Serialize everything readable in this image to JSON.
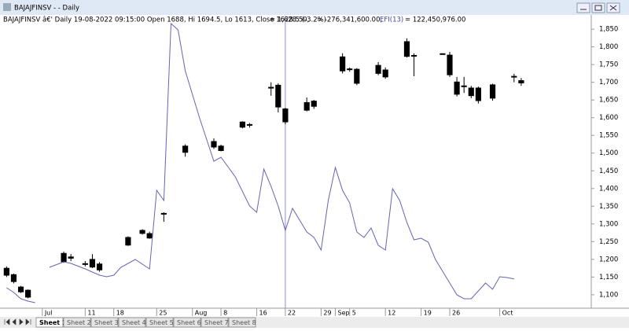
{
  "window": {
    "title": "BAJAJFINSV - - Daily"
  },
  "header": {
    "info": "BAJAJFINSV â€' Daily 19-08-2022 09:15:00 Open 1688, Hi 1694.5, Lo 1613, Close 1628.5 (-3.2%)",
    "close_value": "= 1,628.50,",
    "volume_value": "= -276,341,600.00,",
    "efi_value": "= 122,450,976.00"
  },
  "chart_data": {
    "type": "candlestick",
    "xlim": [
      -0.7,
      81.8
    ],
    "ylim": [
      1062,
      1888
    ],
    "yticks": [
      {
        "value": 1100,
        "label": "1,100"
      },
      {
        "value": 1150,
        "label": "1,150"
      },
      {
        "value": 1200,
        "label": "1,200"
      },
      {
        "value": 1250,
        "label": "1,250"
      },
      {
        "value": 1300,
        "label": "1,300"
      },
      {
        "value": 1350,
        "label": "1,350"
      },
      {
        "value": 1400,
        "label": "1,400"
      },
      {
        "value": 1450,
        "label": "1,450"
      },
      {
        "value": 1500,
        "label": "1,500"
      },
      {
        "value": 1550,
        "label": "1,550"
      },
      {
        "value": 1600,
        "label": "1,600"
      },
      {
        "value": 1650,
        "label": "1,650"
      },
      {
        "value": 1700,
        "label": "1,700"
      },
      {
        "value": 1750,
        "label": "1,750"
      },
      {
        "value": 1800,
        "label": "1,800"
      },
      {
        "value": 1850,
        "label": "1,850"
      }
    ],
    "xticks": [
      {
        "value": 5,
        "label": "Jul"
      },
      {
        "value": 11,
        "label": "11"
      },
      {
        "value": 15,
        "label": "18"
      },
      {
        "value": 21,
        "label": "25"
      },
      {
        "value": 26,
        "label": "Aug"
      },
      {
        "value": 30,
        "label": "8"
      },
      {
        "value": 35,
        "label": "16"
      },
      {
        "value": 39,
        "label": "22"
      },
      {
        "value": 44,
        "label": "29"
      },
      {
        "value": 46,
        "label": "Sep"
      },
      {
        "value": 48,
        "label": "5"
      },
      {
        "value": 53,
        "label": "12"
      },
      {
        "value": 58,
        "label": "19"
      },
      {
        "value": 62,
        "label": "26"
      },
      {
        "value": 69,
        "label": "Oct"
      }
    ],
    "y2lim": [
      -250,
      3470
    ],
    "cursor_x": 39,
    "grid": false,
    "candles": {
      "color": "#000000",
      "x": [
        0,
        1,
        2,
        3,
        8,
        9,
        11,
        12,
        13,
        17,
        19,
        20,
        22,
        25,
        29,
        30,
        33,
        34,
        37,
        38,
        39,
        42,
        43,
        47,
        48,
        49,
        52,
        53,
        56,
        57,
        61,
        62,
        63,
        64,
        65,
        66,
        68,
        71,
        72
      ],
      "open": [
        1175,
        1157,
        1122,
        1113,
        1217,
        1207,
        1188,
        1200,
        1187,
        1262,
        1282,
        1273,
        1330,
        1520,
        1533,
        1520,
        1588,
        1581,
        1686,
        1692,
        1625,
        1643,
        1647,
        1772,
        1738,
        1737,
        1748,
        1735,
        1815,
        1776,
        1781,
        1777,
        1701,
        1690,
        1684,
        1684,
        1693,
        1717,
        1705
      ],
      "high": [
        1180,
        1160,
        1125,
        1115,
        1222,
        1215,
        1195,
        1215,
        1192,
        1265,
        1285,
        1278,
        1333,
        1525,
        1542,
        1524,
        1590,
        1585,
        1700,
        1697,
        1628,
        1657,
        1650,
        1782,
        1742,
        1740,
        1757,
        1742,
        1824,
        1782,
        1782,
        1786,
        1715,
        1715,
        1690,
        1688,
        1696,
        1724,
        1712
      ],
      "low": [
        1150,
        1132,
        1105,
        1090,
        1190,
        1195,
        1180,
        1175,
        1165,
        1238,
        1270,
        1258,
        1306,
        1490,
        1512,
        1505,
        1570,
        1572,
        1662,
        1615,
        1582,
        1618,
        1625,
        1725,
        1730,
        1692,
        1720,
        1710,
        1770,
        1717,
        1778,
        1715,
        1660,
        1670,
        1655,
        1640,
        1648,
        1700,
        1690
      ],
      "close": [
        1155,
        1137,
        1108,
        1093,
        1193,
        1203,
        1186,
        1178,
        1170,
        1240,
        1273,
        1260,
        1328,
        1502,
        1517,
        1507,
        1573,
        1579,
        1684,
        1630,
        1588,
        1621,
        1632,
        1732,
        1736,
        1697,
        1725,
        1715,
        1773,
        1774,
        1780,
        1721,
        1666,
        1688,
        1662,
        1648,
        1655,
        1715,
        1698
      ]
    },
    "series": [
      {
        "name": "EFI(13)",
        "color": "#6464b4",
        "axis": "y2",
        "x": [
          0,
          1,
          2,
          3,
          4,
          5,
          6,
          8,
          9,
          11,
          13,
          14,
          15,
          16,
          18,
          20,
          21,
          22,
          23,
          24,
          25,
          27,
          29,
          30,
          32,
          34,
          35,
          36,
          37,
          38,
          39,
          40,
          42,
          43,
          44,
          45,
          46,
          47,
          48,
          49,
          50,
          51,
          52,
          53,
          54,
          55,
          56,
          57,
          58,
          59,
          60,
          62,
          63,
          64,
          65,
          67,
          68,
          69,
          70,
          71
        ],
        "values": [
          10,
          -50,
          -130,
          -160,
          -180,
          null,
          270,
          340,
          320,
          250,
          170,
          150,
          170,
          270,
          370,
          250,
          1250,
          1120,
          3370,
          3290,
          2770,
          2170,
          1620,
          1670,
          1420,
          1050,
          970,
          1520,
          1300,
          1050,
          740,
          1020,
          720,
          650,
          490,
          1120,
          1540,
          1250,
          1090,
          720,
          650,
          770,
          550,
          490,
          1270,
          1120,
          840,
          620,
          640,
          590,
          370,
          70,
          -80,
          -130,
          -130,
          70,
          -10,
          150,
          140,
          122.45
        ]
      }
    ]
  },
  "tabs": [
    "Sheet 1",
    "Sheet 2",
    "Sheet 3",
    "Sheet 4",
    "Sheet 5",
    "Sheet 6",
    "Sheet 7",
    "Sheet 8"
  ]
}
